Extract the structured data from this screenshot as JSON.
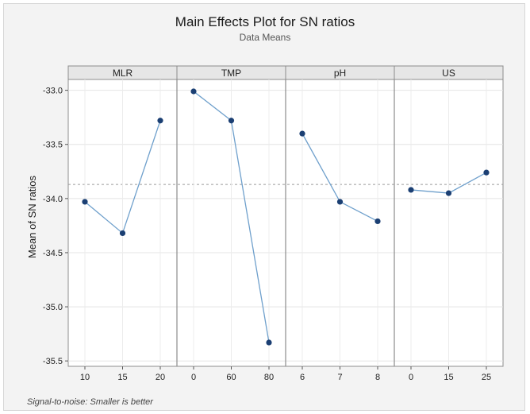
{
  "chart_data": {
    "type": "line",
    "title": "Main Effects Plot for SN ratios",
    "subtitle": "Data Means",
    "ylabel": "Mean of SN ratios",
    "footnote": "Signal-to-noise: Smaller is better",
    "ylim": [
      -35.55,
      -32.9
    ],
    "yticks": [
      "-33.0",
      "-33.5",
      "-34.0",
      "-34.5",
      "-35.0",
      "-35.5"
    ],
    "ytick_values": [
      -33.0,
      -33.5,
      -34.0,
      -34.5,
      -35.0,
      -35.5
    ],
    "reference_line": -33.87,
    "grid": true,
    "colors": {
      "line": "#6fa0cc",
      "marker": "#1b3f73",
      "reference": "#9a9a9a",
      "plot_bg": "#ffffff",
      "strip_bg": "#e6e6e6"
    },
    "panels": [
      {
        "name": "MLR",
        "categories": [
          "10",
          "15",
          "20"
        ],
        "values": [
          -34.03,
          -34.32,
          -33.28
        ]
      },
      {
        "name": "TMP",
        "categories": [
          "0",
          "60",
          "80"
        ],
        "values": [
          -33.01,
          -33.28,
          -35.33
        ]
      },
      {
        "name": "pH",
        "categories": [
          "6",
          "7",
          "8"
        ],
        "values": [
          -33.4,
          -34.03,
          -34.21
        ]
      },
      {
        "name": "US",
        "categories": [
          "0",
          "15",
          "25"
        ],
        "values": [
          -33.92,
          -33.95,
          -33.76
        ]
      }
    ]
  }
}
